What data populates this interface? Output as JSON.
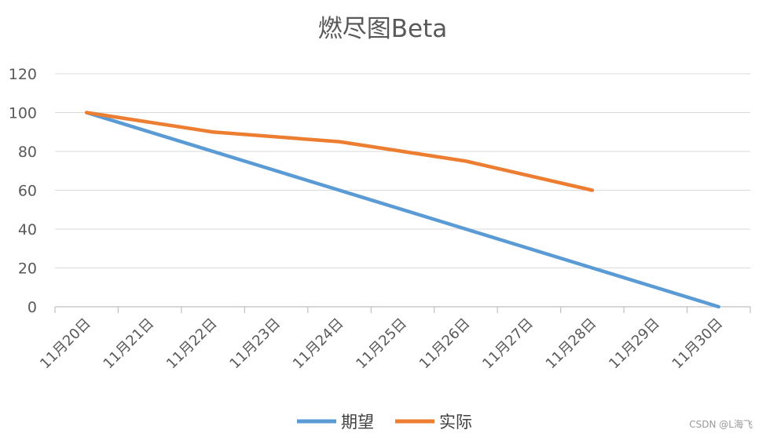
{
  "chart_data": {
    "type": "line",
    "title": "燃尽图Beta",
    "categories": [
      "11月20日",
      "11月21日",
      "11月22日",
      "11月23日",
      "11月24日",
      "11月25日",
      "11月26日",
      "11月27日",
      "11月28日",
      "11月29日",
      "11月30日"
    ],
    "y_ticks": [
      "0",
      "20",
      "40",
      "60",
      "80",
      "100",
      "120"
    ],
    "ylim": [
      0,
      120
    ],
    "grid": true,
    "legend_position": "bottom",
    "series": [
      {
        "name": "期望",
        "color": "#5b9bd5",
        "values": [
          100,
          90,
          80,
          70,
          60,
          50,
          40,
          30,
          20,
          10,
          0
        ]
      },
      {
        "name": "实际",
        "color": "#ed7d31",
        "values": [
          100,
          null,
          90,
          null,
          85,
          null,
          75,
          null,
          60,
          null,
          null
        ]
      }
    ]
  },
  "watermark": "CSDN @L海飞"
}
